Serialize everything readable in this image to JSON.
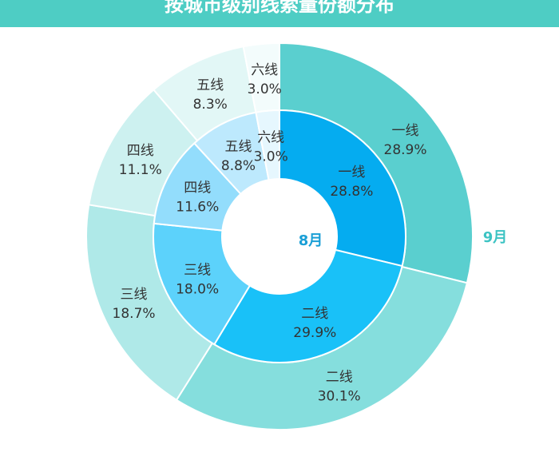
{
  "chart_data": {
    "type": "pie",
    "subtype": "nested-donut",
    "title": "按城市级别线索量份额分布",
    "unit": "%",
    "series": [
      {
        "name": "8月",
        "label_color": "#1a9fd6",
        "categories": [
          "一线",
          "二线",
          "三线",
          "四线",
          "五线",
          "六线"
        ],
        "values": [
          28.8,
          29.9,
          18.0,
          11.6,
          8.8,
          3.0
        ],
        "value_labels": [
          "28.8%",
          "29.9%",
          "18.0%",
          "11.6%",
          "8.8%",
          "3.0%"
        ],
        "colors": [
          "#05acf0",
          "#19c1f8",
          "#5cd2fb",
          "#93ddfc",
          "#bde9fd",
          "#e6f7fe"
        ]
      },
      {
        "name": "9月",
        "label_color": "#3cc3c3",
        "categories": [
          "一线",
          "二线",
          "三线",
          "四线",
          "五线",
          "六线"
        ],
        "values": [
          28.9,
          30.1,
          18.7,
          11.1,
          8.3,
          3.0
        ],
        "value_labels": [
          "28.9%",
          "30.1%",
          "18.7%",
          "11.1%",
          "8.3%",
          "3.0%"
        ],
        "colors": [
          "#5acfcf",
          "#85dedd",
          "#afe9e8",
          "#cdf1f0",
          "#e2f7f6",
          "#f3fcfc"
        ]
      }
    ]
  }
}
